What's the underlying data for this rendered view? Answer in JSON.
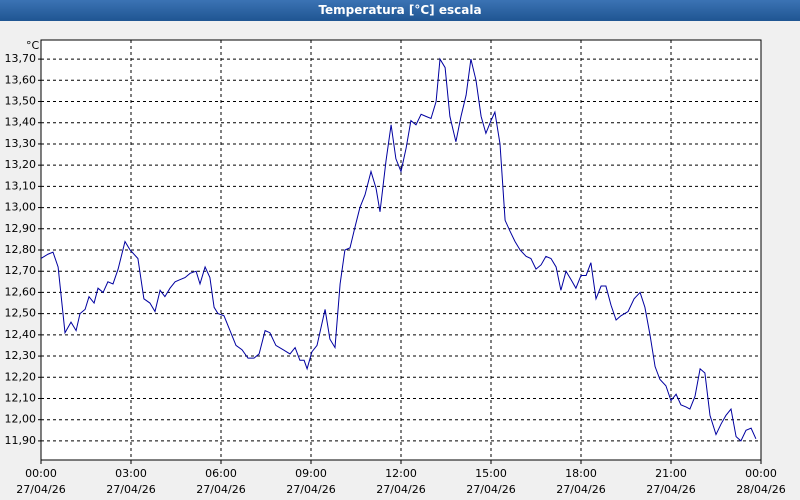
{
  "chart_data": {
    "type": "line",
    "title": "Temperatura [°C] escala",
    "y_unit": "°C",
    "x": [
      0,
      0.23,
      0.4,
      0.57,
      0.8,
      1.0,
      1.17,
      1.3,
      1.47,
      1.6,
      1.77,
      1.9,
      2.07,
      2.23,
      2.4,
      2.57,
      2.8,
      2.97,
      3.23,
      3.43,
      3.63,
      3.8,
      3.97,
      4.13,
      4.3,
      4.47,
      4.63,
      4.8,
      4.97,
      5.17,
      5.3,
      5.47,
      5.63,
      5.77,
      5.9,
      6.1,
      6.3,
      6.5,
      6.7,
      6.9,
      7.1,
      7.27,
      7.47,
      7.63,
      7.83,
      8.07,
      8.3,
      8.47,
      8.63,
      8.77,
      8.87,
      9.03,
      9.2,
      9.47,
      9.63,
      9.8,
      9.97,
      10.13,
      10.3,
      10.47,
      10.63,
      10.8,
      11.0,
      11.17,
      11.3,
      11.5,
      11.67,
      11.83,
      12.0,
      12.17,
      12.33,
      12.5,
      12.67,
      12.83,
      13.0,
      13.17,
      13.3,
      13.47,
      13.63,
      13.83,
      14.0,
      14.17,
      14.33,
      14.5,
      14.67,
      14.83,
      15.0,
      15.13,
      15.3,
      15.47,
      15.63,
      15.8,
      15.97,
      16.17,
      16.33,
      16.5,
      16.67,
      16.83,
      17.0,
      17.17,
      17.33,
      17.5,
      17.67,
      17.83,
      18.0,
      18.17,
      18.33,
      18.5,
      18.67,
      18.83,
      19.0,
      19.17,
      19.33,
      19.57,
      19.77,
      19.97,
      20.13,
      20.3,
      20.47,
      20.63,
      20.83,
      21.0,
      21.17,
      21.33,
      21.5,
      21.63,
      21.8,
      21.97,
      22.13,
      22.3,
      22.5,
      22.67,
      22.83,
      23.0,
      23.17,
      23.33,
      23.5,
      23.67,
      23.83
    ],
    "series": [
      {
        "color": "#0000a0",
        "values": [
          12.76,
          12.78,
          12.79,
          12.72,
          12.41,
          12.46,
          12.42,
          12.5,
          12.52,
          12.58,
          12.55,
          12.62,
          12.6,
          12.65,
          12.64,
          12.71,
          12.84,
          12.8,
          12.76,
          12.57,
          12.55,
          12.51,
          12.61,
          12.58,
          12.62,
          12.65,
          12.66,
          12.67,
          12.69,
          12.7,
          12.64,
          12.72,
          12.67,
          12.53,
          12.5,
          12.49,
          12.42,
          12.35,
          12.33,
          12.29,
          12.29,
          12.31,
          12.42,
          12.41,
          12.35,
          12.33,
          12.31,
          12.34,
          12.28,
          12.28,
          12.24,
          12.32,
          12.35,
          12.52,
          12.38,
          12.34,
          12.64,
          12.8,
          12.81,
          12.91,
          13.0,
          13.06,
          13.17,
          13.09,
          12.98,
          13.22,
          13.39,
          13.23,
          13.17,
          13.28,
          13.41,
          13.39,
          13.44,
          13.43,
          13.42,
          13.5,
          13.7,
          13.66,
          13.43,
          13.31,
          13.43,
          13.53,
          13.7,
          13.6,
          13.43,
          13.35,
          13.41,
          13.45,
          13.3,
          12.94,
          12.89,
          12.84,
          12.8,
          12.77,
          12.76,
          12.71,
          12.73,
          12.77,
          12.76,
          12.72,
          12.61,
          12.7,
          12.66,
          12.62,
          12.68,
          12.68,
          12.74,
          12.57,
          12.63,
          12.63,
          12.54,
          12.47,
          12.49,
          12.51,
          12.57,
          12.6,
          12.53,
          12.4,
          12.25,
          12.19,
          12.16,
          12.09,
          12.12,
          12.07,
          12.06,
          12.05,
          12.11,
          12.24,
          12.22,
          12.02,
          11.93,
          11.98,
          12.02,
          12.05,
          11.92,
          11.9,
          11.95,
          11.96,
          11.91
        ]
      }
    ],
    "xlim": [
      0,
      24
    ],
    "xticks": [
      {
        "value": 0,
        "label": "00:00"
      },
      {
        "value": 3,
        "label": "03:00"
      },
      {
        "value": 6,
        "label": "06:00"
      },
      {
        "value": 9,
        "label": "09:00"
      },
      {
        "value": 12,
        "label": "12:00"
      },
      {
        "value": 15,
        "label": "15:00"
      },
      {
        "value": 18,
        "label": "18:00"
      },
      {
        "value": 21,
        "label": "21:00"
      },
      {
        "value": 24,
        "label": "00:00"
      }
    ],
    "xtick_dates": [
      "27/04/26",
      "27/04/26",
      "27/04/26",
      "27/04/26",
      "27/04/26",
      "27/04/26",
      "27/04/26",
      "27/04/26",
      "28/04/26"
    ],
    "ylim": [
      11.81,
      13.79
    ],
    "yticks": [
      {
        "value": 11.9,
        "label": "11,90"
      },
      {
        "value": 12.0,
        "label": "12,00"
      },
      {
        "value": 12.1,
        "label": "12,10"
      },
      {
        "value": 12.2,
        "label": "12,20"
      },
      {
        "value": 12.3,
        "label": "12,30"
      },
      {
        "value": 12.4,
        "label": "12,40"
      },
      {
        "value": 12.5,
        "label": "12,50"
      },
      {
        "value": 12.6,
        "label": "12,60"
      },
      {
        "value": 12.7,
        "label": "12,70"
      },
      {
        "value": 12.8,
        "label": "12,80"
      },
      {
        "value": 12.9,
        "label": "12,90"
      },
      {
        "value": 13.0,
        "label": "13,00"
      },
      {
        "value": 13.1,
        "label": "13,10"
      },
      {
        "value": 13.2,
        "label": "13,20"
      },
      {
        "value": 13.3,
        "label": "13,30"
      },
      {
        "value": 13.4,
        "label": "13,40"
      },
      {
        "value": 13.5,
        "label": "13,50"
      },
      {
        "value": 13.6,
        "label": "13,60"
      },
      {
        "value": 13.7,
        "label": "13,70"
      }
    ],
    "grid": true
  }
}
